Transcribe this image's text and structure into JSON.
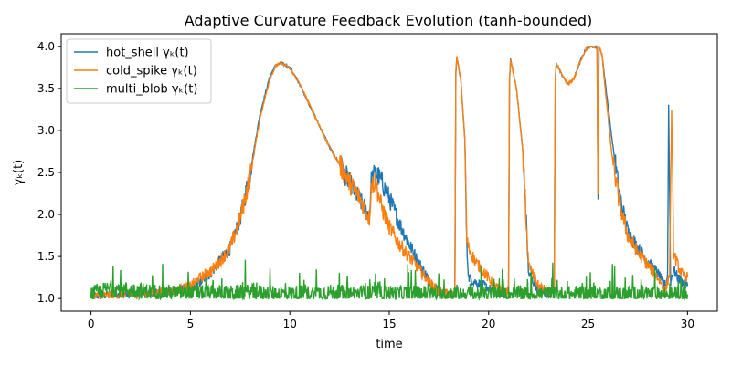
{
  "chart_data": {
    "type": "line",
    "title": "Adaptive Curvature Feedback Evolution (tanh-bounded)",
    "xlabel": "time",
    "ylabel": "γₖ(t)",
    "xlim": [
      -1.5,
      31.5
    ],
    "ylim": [
      0.85,
      4.15
    ],
    "xticks": [
      0,
      5,
      10,
      15,
      20,
      25,
      30
    ],
    "yticks": [
      1.0,
      1.5,
      2.0,
      2.5,
      3.0,
      3.5,
      4.0
    ],
    "grid": false,
    "legend_position": "upper-left",
    "series": [
      {
        "name": "hot_shell γₖ(t)",
        "color": "#1f77b4",
        "x": [
          0,
          1,
          2,
          3,
          4,
          5,
          5.5,
          6,
          6.5,
          7,
          7.5,
          8,
          8.5,
          9,
          9.3,
          9.6,
          10,
          10.5,
          11,
          11.5,
          12,
          12.5,
          13,
          13.5,
          13.8,
          14.0,
          14.1,
          14.3,
          14.6,
          15,
          15.5,
          16,
          16.5,
          17,
          17.5,
          18,
          18.3,
          18.35,
          18.4,
          18.6,
          18.8,
          18.9,
          19.0,
          19.3,
          19.8,
          20.3,
          20.8,
          21.0,
          21.05,
          21.1,
          21.4,
          21.7,
          21.9,
          22.0,
          22.5,
          23.0,
          23.3,
          23.35,
          23.4,
          23.7,
          24.0,
          24.3,
          24.6,
          24.9,
          25.1,
          25.3,
          25.45,
          25.5,
          25.55,
          25.7,
          25.9,
          26.2,
          26.6,
          27.0,
          27.5,
          28.0,
          28.5,
          28.9,
          29.0,
          29.05,
          29.15,
          29.3,
          29.5,
          29.7,
          30.0
        ],
        "values": [
          1.03,
          1.05,
          1.05,
          1.06,
          1.08,
          1.12,
          1.2,
          1.3,
          1.45,
          1.6,
          1.95,
          2.5,
          3.2,
          3.65,
          3.78,
          3.8,
          3.75,
          3.55,
          3.3,
          3.05,
          2.8,
          2.6,
          2.38,
          2.18,
          2.05,
          1.98,
          2.4,
          2.5,
          2.4,
          2.2,
          1.9,
          1.65,
          1.42,
          1.22,
          1.08,
          1.05,
          1.05,
          3.7,
          3.87,
          3.6,
          2.9,
          1.6,
          1.25,
          1.2,
          1.15,
          1.08,
          1.06,
          1.1,
          3.6,
          3.85,
          3.5,
          2.8,
          1.9,
          1.3,
          1.1,
          1.06,
          1.1,
          3.6,
          3.8,
          3.65,
          3.55,
          3.62,
          3.82,
          3.97,
          4.0,
          4.0,
          4.0,
          2.15,
          4.0,
          3.9,
          3.5,
          2.9,
          2.2,
          1.8,
          1.6,
          1.45,
          1.3,
          1.15,
          1.3,
          3.3,
          1.2,
          1.35,
          1.25,
          1.2,
          1.15
        ]
      },
      {
        "name": "cold_spike γₖ(t)",
        "color": "#ff7f0e",
        "x": [
          0,
          1,
          2,
          3,
          4,
          5,
          5.5,
          6,
          6.5,
          7,
          7.5,
          8,
          8.5,
          9,
          9.3,
          9.6,
          10,
          10.5,
          11,
          11.5,
          12,
          12.5,
          13,
          13.5,
          13.8,
          14.0,
          14.1,
          14.3,
          14.6,
          15,
          15.5,
          16,
          16.5,
          17,
          17.5,
          18,
          18.3,
          18.35,
          18.4,
          18.6,
          18.8,
          18.9,
          19.0,
          19.3,
          19.8,
          20.3,
          20.8,
          21.0,
          21.05,
          21.1,
          21.4,
          21.7,
          21.9,
          22.0,
          22.5,
          23.0,
          23.3,
          23.35,
          23.4,
          23.7,
          24.0,
          24.3,
          24.6,
          24.9,
          25.1,
          25.3,
          25.45,
          25.5,
          25.55,
          25.7,
          25.9,
          26.2,
          26.6,
          27.0,
          27.5,
          28.0,
          28.5,
          28.9,
          29.0,
          29.1,
          29.2,
          29.3,
          29.5,
          29.7,
          30.0
        ],
        "values": [
          1.02,
          1.04,
          1.05,
          1.06,
          1.08,
          1.15,
          1.25,
          1.32,
          1.45,
          1.6,
          1.95,
          2.45,
          3.15,
          3.62,
          3.77,
          3.8,
          3.74,
          3.55,
          3.3,
          3.05,
          2.8,
          2.6,
          2.38,
          2.2,
          2.05,
          1.95,
          2.35,
          2.4,
          2.1,
          1.85,
          1.65,
          1.5,
          1.35,
          1.2,
          1.08,
          1.05,
          1.05,
          3.7,
          3.87,
          3.6,
          2.9,
          1.7,
          1.6,
          1.45,
          1.3,
          1.15,
          1.08,
          1.1,
          3.6,
          3.85,
          3.5,
          2.8,
          1.9,
          1.4,
          1.15,
          1.08,
          1.1,
          3.6,
          3.8,
          3.65,
          3.55,
          3.62,
          3.82,
          3.97,
          4.0,
          4.0,
          4.0,
          2.25,
          4.0,
          3.9,
          3.4,
          2.7,
          2.1,
          1.75,
          1.55,
          1.4,
          1.25,
          1.1,
          1.2,
          1.3,
          3.25,
          1.55,
          1.4,
          1.3,
          1.25
        ]
      },
      {
        "name": "multi_blob γₖ(t)",
        "color": "#2ca02c",
        "x": [
          0,
          1,
          2,
          3,
          4,
          5,
          6,
          7,
          8,
          9,
          10,
          11,
          12,
          13,
          14,
          15,
          16,
          17,
          18,
          19,
          20,
          21,
          22,
          23,
          24,
          25,
          26,
          27,
          28,
          29,
          30
        ],
        "values": [
          1.05,
          1.12,
          1.1,
          1.08,
          1.07,
          1.06,
          1.06,
          1.06,
          1.07,
          1.06,
          1.06,
          1.06,
          1.07,
          1.06,
          1.06,
          1.06,
          1.06,
          1.06,
          1.05,
          1.05,
          1.05,
          1.05,
          1.05,
          1.05,
          1.05,
          1.05,
          1.05,
          1.05,
          1.05,
          1.05,
          1.05
        ]
      }
    ]
  }
}
